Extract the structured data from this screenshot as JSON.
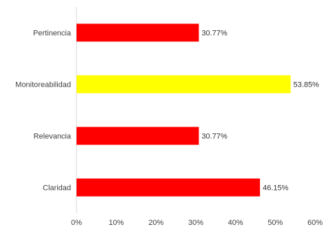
{
  "chart_data": {
    "type": "bar",
    "orientation": "horizontal",
    "title": "",
    "xlabel": "",
    "ylabel": "",
    "categories": [
      "Pertinencia",
      "Monitoreabilidad",
      "Relevancia",
      "Claridad"
    ],
    "values": [
      30.77,
      53.85,
      30.77,
      46.15
    ],
    "data_labels": [
      "30.77%",
      "53.85%",
      "30.77%",
      "46.15%"
    ],
    "bar_colors": [
      "#ff0000",
      "#ffff00",
      "#ff0000",
      "#ff0000"
    ],
    "xlim": [
      0,
      60
    ],
    "x_ticks": [
      0,
      10,
      20,
      30,
      40,
      50,
      60
    ],
    "x_tick_labels": [
      "0%",
      "10%",
      "20%",
      "30%",
      "40%",
      "50%",
      "60%"
    ],
    "grid": false,
    "legend": "none"
  }
}
